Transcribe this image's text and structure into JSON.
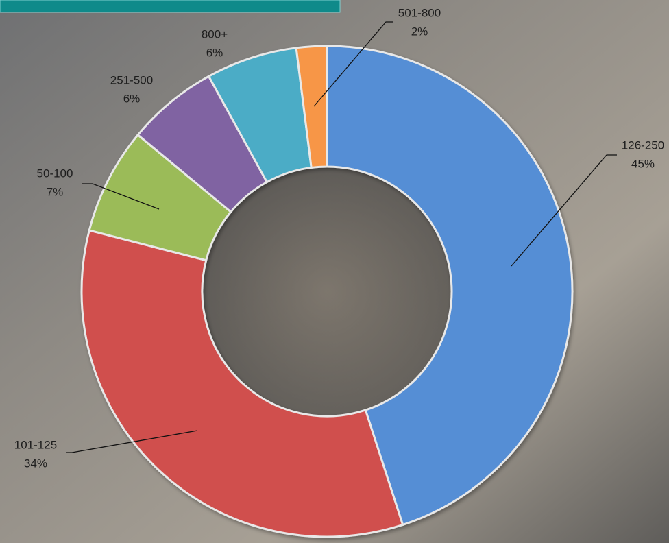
{
  "chart_data": {
    "type": "donut",
    "categories": [
      "126-250",
      "101-125",
      "50-100",
      "251-500",
      "800+",
      "501-800"
    ],
    "values": [
      45,
      34,
      7,
      6,
      6,
      2
    ],
    "value_labels": [
      "45%",
      "34%",
      "7%",
      "6%",
      "6%",
      "2%"
    ],
    "colors": [
      "#558ed5",
      "#d0504d",
      "#9bbb59",
      "#8064a2",
      "#4bacc6",
      "#f79646"
    ]
  }
}
